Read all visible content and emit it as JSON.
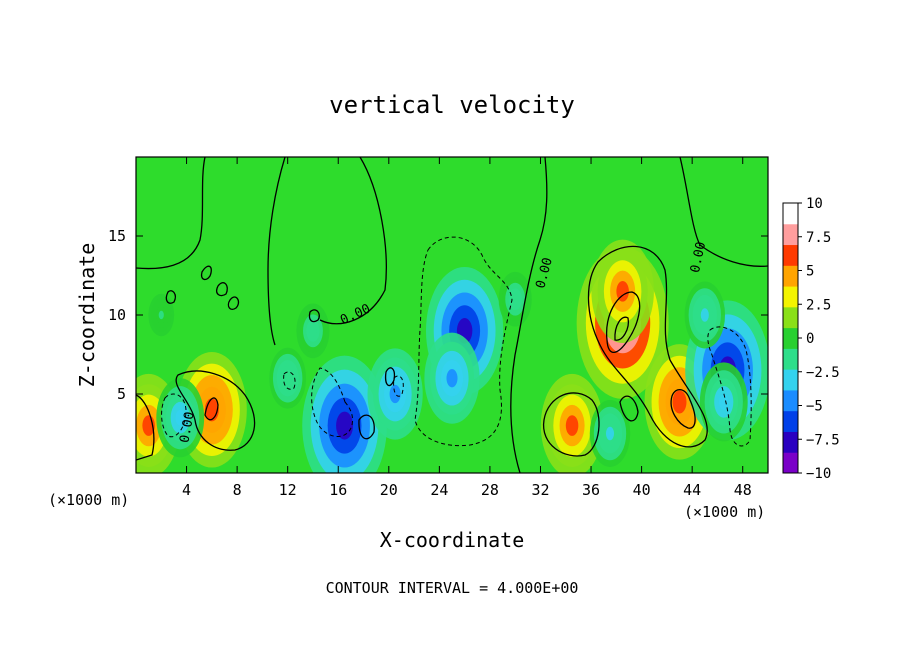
{
  "chart_data": {
    "type": "heatmap",
    "title": "vertical velocity",
    "xlabel": "X-coordinate",
    "ylabel": "Z-coordinate",
    "x_unit_left": "(×1000 m)",
    "x_unit_right": "(×1000 m)",
    "footer": "CONTOUR INTERVAL = 4.000E+00",
    "xlim": [
      0,
      50
    ],
    "ylim": [
      0,
      20
    ],
    "x_ticks": [
      "4",
      "8",
      "12",
      "16",
      "20",
      "24",
      "28",
      "32",
      "36",
      "40",
      "44",
      "48"
    ],
    "y_ticks": [
      "5",
      "10",
      "15"
    ],
    "colorbar": {
      "range": [
        -10,
        10
      ],
      "labels": [
        "10",
        "7.5",
        "5",
        "2.5",
        "0",
        "−2.5",
        "−5",
        "−7.5",
        "−10"
      ],
      "colors": [
        "#7a00c8",
        "#2a00c0",
        "#0040e8",
        "#1a8cff",
        "#34d2ee",
        "#2ede8a",
        "#28d030",
        "#8ae018",
        "#f4f400",
        "#ffa400",
        "#ff3a00",
        "#ff9e9e",
        "#ffffff"
      ]
    },
    "contour_labels": [
      "0.00",
      "0.00",
      "0.00",
      "0.00"
    ],
    "features": [
      {
        "x": 38.5,
        "z": 9.5,
        "value": 10
      },
      {
        "x": 38.5,
        "z": 11.5,
        "value": 6
      },
      {
        "x": 43.0,
        "z": 4.5,
        "value": 7
      },
      {
        "x": 34.5,
        "z": 3.0,
        "value": 6
      },
      {
        "x": 6.0,
        "z": 4.0,
        "value": 7
      },
      {
        "x": 1.0,
        "z": 3.0,
        "value": 6
      },
      {
        "x": 26.0,
        "z": 9.0,
        "value": -8
      },
      {
        "x": 25.0,
        "z": 6.0,
        "value": -5
      },
      {
        "x": 16.5,
        "z": 3.0,
        "value": -9
      },
      {
        "x": 46.8,
        "z": 6.5,
        "value": -9
      },
      {
        "x": 46.5,
        "z": 4.5,
        "value": -4
      },
      {
        "x": 3.5,
        "z": 3.5,
        "value": -4
      },
      {
        "x": 20.5,
        "z": 5.0,
        "value": -5
      },
      {
        "x": 37.5,
        "z": 2.5,
        "value": -3
      },
      {
        "x": 30.0,
        "z": 11.0,
        "value": -2
      },
      {
        "x": 14.0,
        "z": 9.0,
        "value": -2
      },
      {
        "x": 12.0,
        "z": 6.0,
        "value": -2.5
      },
      {
        "x": 45.0,
        "z": 10.0,
        "value": -3
      },
      {
        "x": 2.0,
        "z": 10.0,
        "value": -1
      }
    ]
  }
}
